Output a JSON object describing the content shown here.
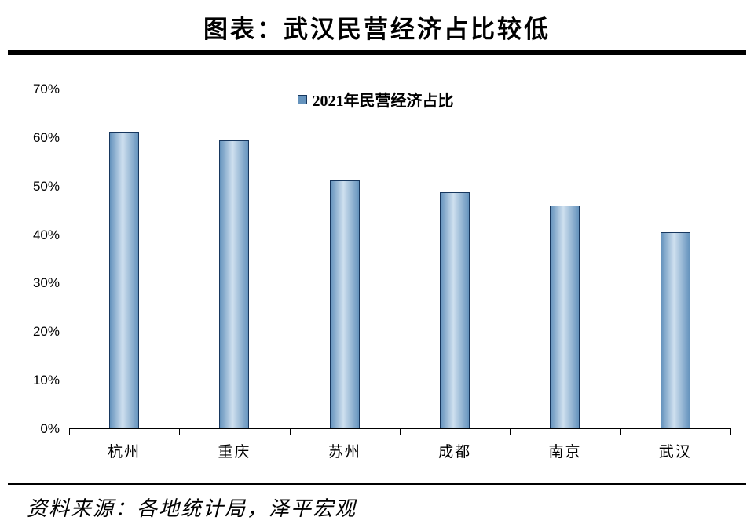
{
  "chart_data": {
    "type": "bar",
    "title": "图表：武汉民营经济占比较低",
    "legend": [
      "2021年民营经济占比"
    ],
    "legend_position": "top-center",
    "categories": [
      "杭州",
      "重庆",
      "苏州",
      "成都",
      "南京",
      "武汉"
    ],
    "values": [
      61.3,
      59.5,
      51.1,
      48.8,
      46.0,
      40.4
    ],
    "xlabel": "",
    "ylabel": "",
    "ylim": [
      0,
      70
    ],
    "ytick_step": 10,
    "ytick_suffix": "%",
    "grid": false,
    "colors": {
      "bar_dark": "#6593bd",
      "bar_light": "#cfe0ef",
      "bar_border": "#17375e",
      "axis": "#000000"
    }
  },
  "footer": {
    "source": "资料来源：各地统计局，泽平宏观"
  }
}
